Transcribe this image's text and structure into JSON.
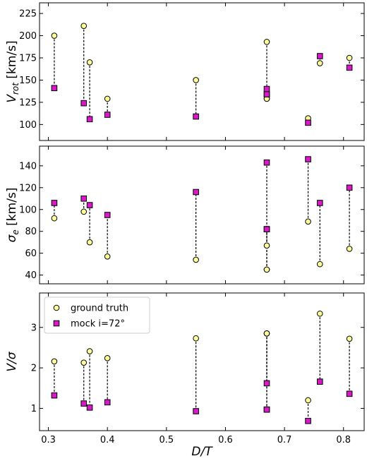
{
  "chart_data": [
    {
      "type": "scatter",
      "panel": "top",
      "ylabel": "V_rot [km/s]",
      "ylabel_main": "V",
      "ylabel_sub": "rot",
      "ylabel_unit": " [km/s]",
      "xlim": [
        0.285,
        0.835
      ],
      "ylim": [
        82,
        237
      ],
      "yticks": [
        100,
        125,
        150,
        175,
        200,
        225
      ],
      "x": [
        0.31,
        0.36,
        0.37,
        0.4,
        0.55,
        0.67,
        0.67,
        0.67,
        0.74,
        0.76,
        0.81
      ],
      "series": [
        {
          "name": "ground truth",
          "values": [
            200,
            211,
            170,
            129,
            150,
            193,
            129,
            129,
            107,
            169,
            175
          ]
        },
        {
          "name": "mock i=72°",
          "values": [
            141,
            124,
            106,
            111,
            109,
            134,
            140,
            134,
            102,
            177,
            164
          ]
        }
      ]
    },
    {
      "type": "scatter",
      "panel": "middle",
      "ylabel": "σ_e [km/s]",
      "ylabel_main": "σ",
      "ylabel_sub": "e",
      "ylabel_unit": " [km/s]",
      "xlim": [
        0.285,
        0.835
      ],
      "ylim": [
        32,
        158
      ],
      "yticks": [
        40,
        60,
        80,
        100,
        120,
        140
      ],
      "x": [
        0.31,
        0.36,
        0.37,
        0.4,
        0.55,
        0.67,
        0.67,
        0.67,
        0.74,
        0.76,
        0.81
      ],
      "series": [
        {
          "name": "ground truth",
          "values": [
            92,
            98,
            70,
            57,
            54,
            67,
            45,
            45,
            89,
            50,
            64
          ]
        },
        {
          "name": "mock i=72°",
          "values": [
            106,
            110,
            104,
            95,
            116,
            143,
            82,
            82,
            146,
            106,
            120
          ]
        }
      ]
    },
    {
      "type": "scatter",
      "panel": "bottom",
      "ylabel": "V/σ",
      "xlabel": "D/T",
      "xlim": [
        0.285,
        0.835
      ],
      "ylim": [
        0.45,
        3.85
      ],
      "yticks": [
        1,
        2,
        3
      ],
      "xticks": [
        0.3,
        0.4,
        0.5,
        0.6,
        0.7,
        0.8
      ],
      "x": [
        0.31,
        0.36,
        0.37,
        0.4,
        0.55,
        0.67,
        0.67,
        0.67,
        0.74,
        0.76,
        0.81
      ],
      "series": [
        {
          "name": "ground truth",
          "values": [
            2.16,
            2.13,
            2.41,
            2.24,
            2.73,
            2.85,
            2.85,
            2.85,
            1.2,
            3.34,
            2.72
          ]
        },
        {
          "name": "mock i=72°",
          "values": [
            1.32,
            1.12,
            1.02,
            1.15,
            0.93,
            1.62,
            0.97,
            0.97,
            0.69,
            1.66,
            1.36
          ]
        }
      ],
      "legend": "top-left"
    }
  ],
  "legend": {
    "items": [
      {
        "label": "ground truth",
        "color": "#ffff99",
        "marker": "circle"
      },
      {
        "label": "mock i=72°",
        "color": "#d919c9",
        "marker": "square"
      }
    ]
  },
  "colors": {
    "ground_truth": "#ffff99",
    "mock": "#d919c9",
    "connector": "#000000"
  }
}
